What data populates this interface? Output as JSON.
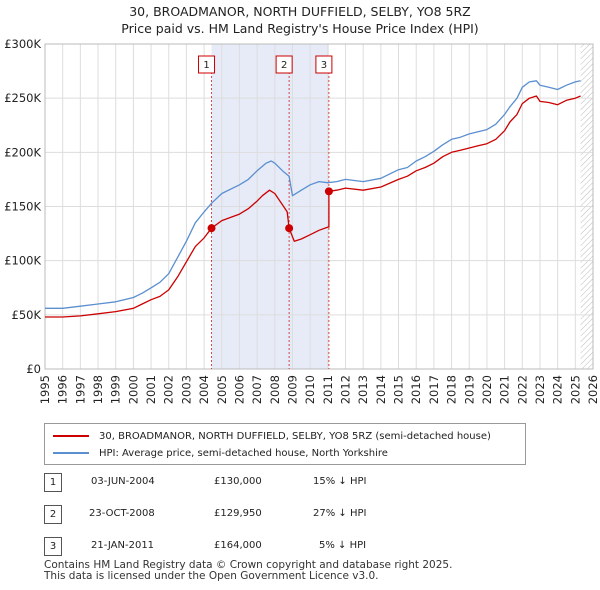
{
  "header": {
    "title_line1": "30, BROADMANOR, NORTH DUFFIELD, SELBY, YO8 5RZ",
    "title_line2": "Price paid vs. HM Land Registry's House Price Index (HPI)"
  },
  "colors": {
    "price_line": "#cc0000",
    "hpi_line": "#5b8fd0",
    "shade": "#e6ebf7",
    "future_hatch": "#bbbbbb",
    "marker_line": "#cc0000"
  },
  "chart_data": {
    "type": "line",
    "title": "30, BROADMANOR, NORTH DUFFIELD, SELBY, YO8 5RZ - Price paid vs. HM Land Registry's House Price Index (HPI)",
    "xlabel": "",
    "ylabel": "",
    "xlim": [
      1995,
      2026
    ],
    "ylim": [
      0,
      300000
    ],
    "y_ticks": [
      {
        "value": 0,
        "label": "£0"
      },
      {
        "value": 50000,
        "label": "£50K"
      },
      {
        "value": 100000,
        "label": "£100K"
      },
      {
        "value": 150000,
        "label": "£150K"
      },
      {
        "value": 200000,
        "label": "£200K"
      },
      {
        "value": 250000,
        "label": "£250K"
      },
      {
        "value": 300000,
        "label": "£300K"
      }
    ],
    "x_ticks": [
      "1995",
      "1996",
      "1997",
      "1998",
      "1999",
      "2000",
      "2001",
      "2002",
      "2003",
      "2004",
      "2005",
      "2006",
      "2007",
      "2008",
      "2009",
      "2010",
      "2011",
      "2012",
      "2013",
      "2014",
      "2015",
      "2016",
      "2017",
      "2018",
      "2019",
      "2020",
      "2021",
      "2022",
      "2023",
      "2024",
      "2025",
      "2026"
    ],
    "grid": true,
    "shaded_region": [
      2004.42,
      2011.06
    ],
    "future_from": 2025.3,
    "series": [
      {
        "name": "30, BROADMANOR, NORTH DUFFIELD, SELBY, YO8 5RZ (semi-detached house)",
        "x": [
          1995,
          1996,
          1997,
          1998,
          1999,
          2000,
          2000.5,
          2001,
          2001.5,
          2002,
          2002.5,
          2003,
          2003.5,
          2004,
          2004.42,
          2004.42,
          2005,
          2006,
          2006.5,
          2007,
          2007.3,
          2007.7,
          2008,
          2008.5,
          2008.7,
          2008.81,
          2008.81,
          2009.1,
          2009.5,
          2010,
          2010.5,
          2011.0,
          2011.06,
          2011.06,
          2011.5,
          2012,
          2013,
          2014,
          2015,
          2015.5,
          2016,
          2016.5,
          2017,
          2017.5,
          2018,
          2018.5,
          2019,
          2019.5,
          2020,
          2020.5,
          2021,
          2021.3,
          2021.7,
          2022,
          2022.4,
          2022.8,
          2023,
          2023.5,
          2024,
          2024.5,
          2025,
          2025.3
        ],
        "values": [
          48000,
          48000,
          49000,
          51000,
          53000,
          56000,
          60000,
          64000,
          67000,
          73000,
          85000,
          99000,
          113000,
          121000,
          130000,
          130000,
          137000,
          143000,
          148000,
          155000,
          160000,
          165000,
          162000,
          150000,
          145000,
          130000,
          129950,
          118000,
          120000,
          124000,
          128000,
          131000,
          131000,
          164000,
          165000,
          167000,
          165000,
          168000,
          175000,
          178000,
          183000,
          186000,
          190000,
          196000,
          200000,
          202000,
          204000,
          206000,
          208000,
          212000,
          220000,
          228000,
          235000,
          245000,
          250000,
          252000,
          247000,
          246000,
          244000,
          248000,
          250000,
          252000
        ]
      },
      {
        "name": "HPI: Average price, semi-detached house, North Yorkshire",
        "x": [
          1995,
          1996,
          1997,
          1998,
          1999,
          2000,
          2000.5,
          2001,
          2001.5,
          2002,
          2002.5,
          2003,
          2003.5,
          2004,
          2004.42,
          2005,
          2006,
          2006.5,
          2007,
          2007.5,
          2007.8,
          2008,
          2008.5,
          2008.81,
          2009,
          2009.5,
          2010,
          2010.5,
          2011,
          2011.5,
          2012,
          2013,
          2014,
          2015,
          2015.5,
          2016,
          2016.5,
          2017,
          2017.5,
          2018,
          2018.5,
          2019,
          2019.5,
          2020,
          2020.5,
          2021,
          2021.3,
          2021.7,
          2022,
          2022.4,
          2022.8,
          2023,
          2023.5,
          2024,
          2024.5,
          2025,
          2025.3
        ],
        "values": [
          56000,
          56000,
          58000,
          60000,
          62000,
          66000,
          70000,
          75000,
          80000,
          88000,
          103000,
          118000,
          135000,
          145000,
          153000,
          162000,
          170000,
          175000,
          183000,
          190000,
          192000,
          190000,
          182000,
          178000,
          160000,
          165000,
          170000,
          173000,
          172000,
          173000,
          175000,
          173000,
          176000,
          184000,
          186000,
          192000,
          196000,
          201000,
          207000,
          212000,
          214000,
          217000,
          219000,
          221000,
          226000,
          235000,
          242000,
          250000,
          260000,
          265000,
          266000,
          262000,
          260000,
          258000,
          262000,
          265000,
          266000
        ]
      }
    ],
    "sale_points": [
      {
        "label": "1",
        "x": 2004.42,
        "y": 130000
      },
      {
        "label": "2",
        "x": 2008.81,
        "y": 129950
      },
      {
        "label": "3",
        "x": 2011.06,
        "y": 164000
      }
    ]
  },
  "legend": {
    "price_label": "30, BROADMANOR, NORTH DUFFIELD, SELBY, YO8 5RZ (semi-detached house)",
    "hpi_label": "HPI: Average price, semi-detached house, North Yorkshire"
  },
  "transactions": [
    {
      "num": "1",
      "date": "03-JUN-2004",
      "price": "£130,000",
      "hpi": "15% ↓ HPI"
    },
    {
      "num": "2",
      "date": "23-OCT-2008",
      "price": "£129,950",
      "hpi": "27% ↓ HPI"
    },
    {
      "num": "3",
      "date": "21-JAN-2011",
      "price": "£164,000",
      "hpi": "5% ↓ HPI"
    }
  ],
  "footer": {
    "line1": "Contains HM Land Registry data © Crown copyright and database right 2025.",
    "line2": "This data is licensed under the Open Government Licence v3.0."
  }
}
